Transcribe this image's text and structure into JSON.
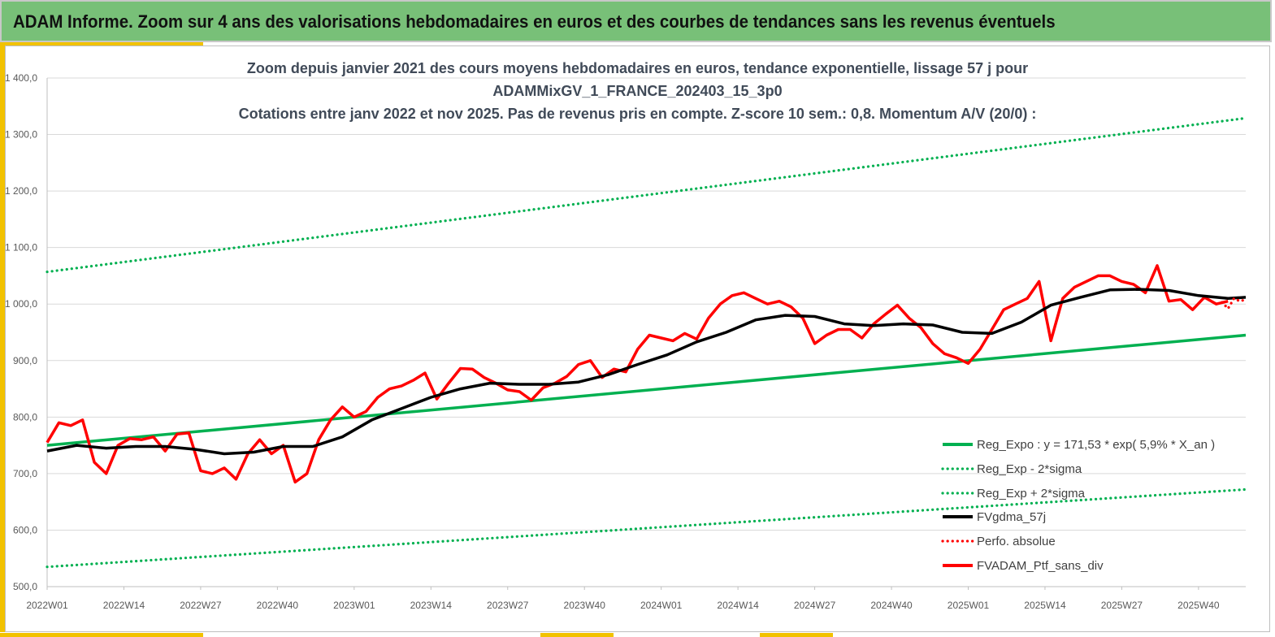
{
  "banner": {
    "title": "ADAM Informe. Zoom sur 4 ans des valorisations hebdomadaires en euros et des courbes de tendances sans les revenus éventuels"
  },
  "chart_data": {
    "type": "line",
    "title_lines": [
      "Zoom depuis janvier 2021 des cours moyens hebdomadaires  en euros, tendance exponentielle, lissage 57 j pour",
      "ADAMMixGV_1_FRANCE_202403_15_3p0",
      "Cotations entre janv 2022 et nov 2025. Pas de revenus pris en compte. Z-score 10 sem.: 0,8. Momentum A/V (20/0) :"
    ],
    "ylim": [
      500,
      1400
    ],
    "y_ticks": [
      "500,0",
      "600,0",
      "700,0",
      "800,0",
      "900,0",
      "1 000,0",
      "1 100,0",
      "1 200,0",
      "1 300,0",
      "1 400,0"
    ],
    "x_ticks": [
      "2022W01",
      "2022W14",
      "2022W27",
      "2022W40",
      "2023W01",
      "2023W14",
      "2023W27",
      "2023W40",
      "2024W01",
      "2024W14",
      "2024W27",
      "2024W40",
      "2025W01",
      "2025W14",
      "2025W27",
      "2025W40"
    ],
    "x_range_weeks": [
      0,
      203
    ],
    "grid": true,
    "legend_position": "bottom-right",
    "series": [
      {
        "name": "Reg_Expo : y = 171,53 * exp( 5,9% *  X_an )",
        "color": "#00b050",
        "style": "solid",
        "x": [
          0,
          203
        ],
        "y": [
          750,
          945
        ]
      },
      {
        "name": "Reg_Exp - 2*sigma",
        "color": "#00b050",
        "style": "dotted",
        "x": [
          0,
          203
        ],
        "y": [
          535,
          672
        ]
      },
      {
        "name": "Reg_Exp + 2*sigma",
        "color": "#00b050",
        "style": "dotted",
        "x": [
          0,
          203
        ],
        "y": [
          1057,
          1329
        ]
      },
      {
        "name": "FVgdma_57j",
        "color": "#000000",
        "style": "solid",
        "x": [
          0,
          5,
          10,
          15,
          20,
          25,
          30,
          35,
          40,
          45,
          50,
          55,
          60,
          65,
          70,
          75,
          80,
          85,
          90,
          95,
          100,
          105,
          110,
          115,
          120,
          125,
          130,
          135,
          140,
          145,
          150,
          155,
          160,
          165,
          170,
          175,
          180,
          185,
          190,
          195,
          200,
          203
        ],
        "y": [
          740,
          750,
          745,
          748,
          748,
          743,
          735,
          738,
          748,
          748,
          765,
          795,
          815,
          835,
          850,
          860,
          858,
          858,
          862,
          875,
          893,
          910,
          933,
          950,
          972,
          980,
          978,
          965,
          962,
          965,
          963,
          950,
          948,
          968,
          998,
          1012,
          1025,
          1026,
          1024,
          1015,
          1010,
          1012
        ]
      },
      {
        "name": "Perfo. absolue",
        "color": "#ff0000",
        "style": "dotted",
        "x": [
          199,
          200,
          201,
          202,
          203
        ],
        "y": [
          1003,
          992,
          1010,
          1005,
          1008
        ]
      },
      {
        "name": "FVADAM_Ptf_sans_div",
        "color": "#ff0000",
        "style": "solid",
        "x": [
          0,
          2,
          4,
          6,
          8,
          10,
          12,
          14,
          16,
          18,
          20,
          22,
          24,
          26,
          28,
          30,
          32,
          34,
          36,
          38,
          40,
          42,
          44,
          46,
          48,
          50,
          52,
          54,
          56,
          58,
          60,
          62,
          64,
          66,
          68,
          70,
          72,
          74,
          76,
          78,
          80,
          82,
          84,
          86,
          88,
          90,
          92,
          94,
          96,
          98,
          100,
          102,
          104,
          106,
          108,
          110,
          112,
          114,
          116,
          118,
          120,
          122,
          124,
          126,
          128,
          130,
          132,
          134,
          136,
          138,
          140,
          142,
          144,
          146,
          148,
          150,
          152,
          154,
          156,
          158,
          160,
          162,
          164,
          166,
          168,
          170,
          172,
          174,
          176,
          178,
          180,
          182,
          184,
          186,
          188,
          190,
          192,
          194,
          196,
          198,
          200
        ],
        "y": [
          755,
          790,
          785,
          795,
          720,
          700,
          750,
          762,
          760,
          765,
          740,
          770,
          772,
          705,
          700,
          710,
          690,
          735,
          760,
          735,
          750,
          685,
          700,
          760,
          795,
          818,
          800,
          810,
          835,
          850,
          855,
          865,
          878,
          832,
          860,
          886,
          885,
          870,
          860,
          848,
          845,
          830,
          852,
          860,
          872,
          893,
          900,
          870,
          885,
          880,
          920,
          945,
          940,
          935,
          948,
          938,
          975,
          1000,
          1015,
          1020,
          1010,
          1000,
          1005,
          995,
          975,
          930,
          945,
          955,
          955,
          940,
          965,
          982,
          998,
          975,
          958,
          930,
          912,
          905,
          895,
          920,
          955,
          990,
          1000,
          1010,
          1040,
          935,
          1010,
          1030,
          1040,
          1050,
          1050,
          1040,
          1035,
          1020,
          1068,
          1005,
          1008,
          990,
          1012,
          1000,
          1005
        ]
      }
    ]
  }
}
